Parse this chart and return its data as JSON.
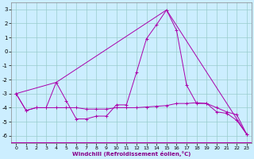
{
  "xlabel": "Windchill (Refroidissement éolien,°C)",
  "xlim": [
    -0.5,
    23.5
  ],
  "ylim": [
    -6.5,
    3.5
  ],
  "yticks": [
    3,
    2,
    1,
    0,
    -1,
    -2,
    -3,
    -4,
    -5,
    -6
  ],
  "xticks": [
    0,
    1,
    2,
    3,
    4,
    5,
    6,
    7,
    8,
    9,
    10,
    11,
    12,
    13,
    14,
    15,
    16,
    17,
    18,
    19,
    20,
    21,
    22,
    23
  ],
  "bg_color": "#cceeff",
  "grid_color": "#99cccc",
  "line_color": "#aa00aa",
  "series1": [
    [
      0,
      -3.0
    ],
    [
      1,
      -4.2
    ],
    [
      2,
      -4.0
    ],
    [
      3,
      -4.0
    ],
    [
      4,
      -2.2
    ],
    [
      5,
      -3.5
    ],
    [
      6,
      -4.8
    ],
    [
      7,
      -4.8
    ],
    [
      8,
      -4.6
    ],
    [
      9,
      -4.6
    ],
    [
      10,
      -3.8
    ],
    [
      11,
      -3.8
    ],
    [
      12,
      -1.5
    ],
    [
      13,
      0.9
    ],
    [
      14,
      1.9
    ],
    [
      15,
      2.95
    ],
    [
      16,
      1.5
    ],
    [
      17,
      -2.4
    ],
    [
      18,
      -3.7
    ],
    [
      19,
      -3.7
    ],
    [
      20,
      -4.3
    ],
    [
      21,
      -4.4
    ],
    [
      22,
      -4.9
    ],
    [
      23,
      -5.9
    ]
  ],
  "series2": [
    [
      0,
      -3.0
    ],
    [
      1,
      -4.2
    ],
    [
      2,
      -4.0
    ],
    [
      3,
      -4.0
    ],
    [
      4,
      -4.0
    ],
    [
      5,
      -4.0
    ],
    [
      6,
      -4.0
    ],
    [
      7,
      -4.1
    ],
    [
      8,
      -4.1
    ],
    [
      9,
      -4.1
    ],
    [
      10,
      -4.0
    ],
    [
      11,
      -4.0
    ],
    [
      12,
      -4.0
    ],
    [
      13,
      -3.95
    ],
    [
      14,
      -3.9
    ],
    [
      15,
      -3.85
    ],
    [
      16,
      -3.7
    ],
    [
      17,
      -3.7
    ],
    [
      18,
      -3.65
    ],
    [
      19,
      -3.7
    ],
    [
      20,
      -4.0
    ],
    [
      21,
      -4.3
    ],
    [
      22,
      -4.5
    ],
    [
      23,
      -5.9
    ]
  ],
  "series3": [
    [
      0,
      -3.0
    ],
    [
      4,
      -2.2
    ],
    [
      15,
      2.95
    ],
    [
      23,
      -5.9
    ]
  ]
}
